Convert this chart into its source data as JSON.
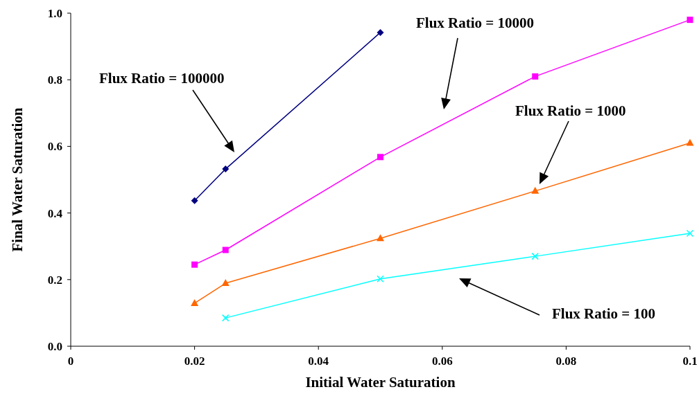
{
  "chart_data": {
    "type": "line",
    "xlabel": "Initial Water Saturation",
    "ylabel": "Final Water Saturation",
    "xlim": [
      0,
      0.1
    ],
    "xticks": [
      0,
      0.02,
      0.04,
      0.06,
      0.08,
      {
        "value": 0.1,
        "label": "0.1"
      }
    ],
    "ylim": [
      0,
      1
    ],
    "yticks": [
      {
        "value": 0,
        "label": "0.0"
      },
      0.2,
      0.4,
      0.6,
      0.8,
      {
        "value": 1,
        "label": "1.0"
      }
    ],
    "grid": false,
    "line_style": "solid",
    "annotations": [
      "Flux Ratio = 100000",
      "Flux Ratio = 10000",
      "Flux Ratio = 1000",
      "Flux Ratio = 100"
    ],
    "series": [
      {
        "color": "#000080",
        "marker": "diamond",
        "x": [
          0.02,
          0.025,
          0.05
        ],
        "values": [
          0.437,
          0.532,
          0.942
        ]
      },
      {
        "color": "#ff00ff",
        "marker": "square",
        "x": [
          0.02,
          0.025,
          0.05,
          0.075,
          0.1
        ],
        "values": [
          0.245,
          0.289,
          0.568,
          0.81,
          0.98
        ]
      },
      {
        "color": "#ff6600",
        "marker": "triangle",
        "x": [
          0.02,
          0.025,
          0.05,
          0.075,
          0.1
        ],
        "values": [
          0.129,
          0.189,
          0.324,
          0.466,
          0.61
        ]
      },
      {
        "color": "#00ffff",
        "marker": "cross",
        "x": [
          0.025,
          0.05,
          0.075,
          0.1
        ],
        "values": [
          0.085,
          0.202,
          0.27,
          0.339
        ]
      }
    ]
  }
}
